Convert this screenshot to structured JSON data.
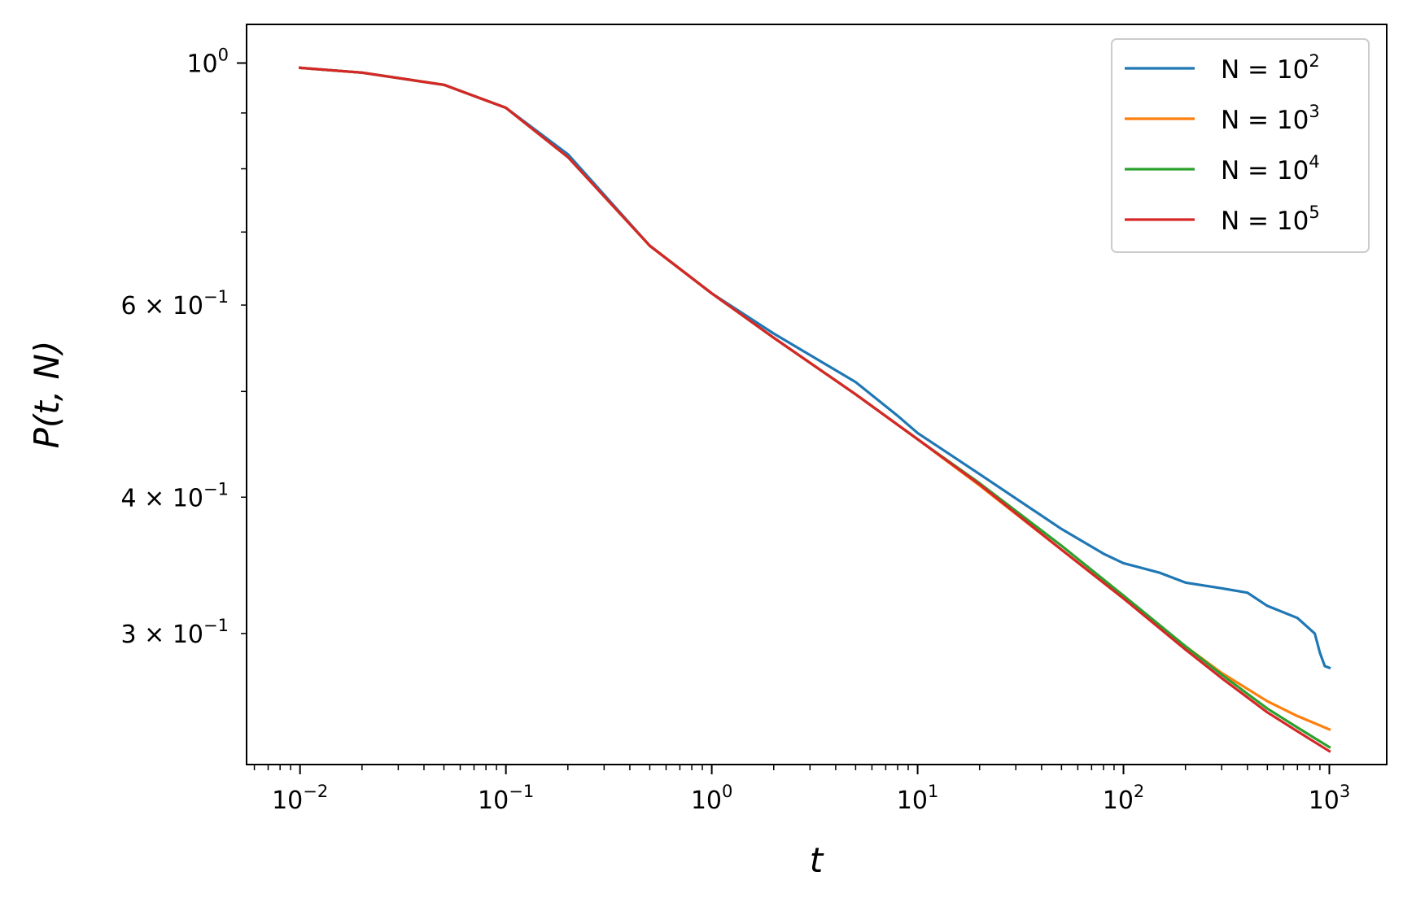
{
  "chart_data": {
    "type": "line",
    "title": "",
    "xlabel": "t",
    "ylabel": "P(t, N)",
    "xscale": "log",
    "yscale": "log",
    "xlim": [
      0.0055,
      1900
    ],
    "ylim": [
      0.2275,
      1.085
    ],
    "grid": false,
    "legend_position": "top-right",
    "x_ticks": [
      {
        "value": 0.01,
        "base": "10",
        "exp": "−2"
      },
      {
        "value": 0.1,
        "base": "10",
        "exp": "−1"
      },
      {
        "value": 1,
        "base": "10",
        "exp": "0"
      },
      {
        "value": 10,
        "base": "10",
        "exp": "1"
      },
      {
        "value": 100,
        "base": "10",
        "exp": "2"
      },
      {
        "value": 1000,
        "base": "10",
        "exp": "3"
      }
    ],
    "y_ticks": [
      {
        "value": 1.0,
        "base": "10",
        "exp": "0"
      },
      {
        "value": 0.6,
        "base": "6 × 10",
        "exp": "−1"
      },
      {
        "value": 0.4,
        "base": "4 × 10",
        "exp": "−1"
      },
      {
        "value": 0.3,
        "base": "3 × 10",
        "exp": "−1"
      }
    ],
    "series": [
      {
        "name": "N = 10",
        "name_exp": "2",
        "color": "#1f77b4",
        "x": [
          0.01,
          0.02,
          0.05,
          0.1,
          0.2,
          0.5,
          1,
          2,
          3,
          5,
          8,
          10,
          20,
          50,
          80,
          100,
          150,
          200,
          300,
          400,
          500,
          700,
          850,
          900,
          950,
          1000
        ],
        "y": [
          0.99,
          0.98,
          0.955,
          0.91,
          0.825,
          0.68,
          0.615,
          0.565,
          0.54,
          0.51,
          0.475,
          0.458,
          0.42,
          0.374,
          0.355,
          0.348,
          0.341,
          0.334,
          0.33,
          0.327,
          0.318,
          0.31,
          0.3,
          0.288,
          0.28,
          0.279
        ]
      },
      {
        "name": "N = 10",
        "name_exp": "3",
        "color": "#ff7f0e",
        "x": [
          0.01,
          0.02,
          0.05,
          0.1,
          0.2,
          0.5,
          1,
          2,
          5,
          10,
          20,
          50,
          100,
          200,
          300,
          500,
          700,
          1000
        ],
        "y": [
          0.99,
          0.98,
          0.955,
          0.91,
          0.82,
          0.68,
          0.615,
          0.56,
          0.497,
          0.452,
          0.41,
          0.358,
          0.323,
          0.292,
          0.276,
          0.26,
          0.252,
          0.245
        ]
      },
      {
        "name": "N = 10",
        "name_exp": "4",
        "color": "#2ca02c",
        "x": [
          0.01,
          0.02,
          0.05,
          0.1,
          0.2,
          0.5,
          1,
          2,
          5,
          10,
          20,
          50,
          100,
          200,
          300,
          500,
          700,
          1000
        ],
        "y": [
          0.99,
          0.98,
          0.955,
          0.91,
          0.82,
          0.68,
          0.615,
          0.56,
          0.497,
          0.452,
          0.412,
          0.361,
          0.325,
          0.292,
          0.275,
          0.256,
          0.246,
          0.236
        ]
      },
      {
        "name": "N = 10",
        "name_exp": "5",
        "color": "#d62728",
        "x": [
          0.01,
          0.02,
          0.05,
          0.1,
          0.2,
          0.5,
          1,
          2,
          5,
          10,
          20,
          50,
          100,
          200,
          300,
          500,
          700,
          1000
        ],
        "y": [
          0.99,
          0.98,
          0.955,
          0.91,
          0.82,
          0.68,
          0.615,
          0.56,
          0.497,
          0.452,
          0.411,
          0.358,
          0.323,
          0.29,
          0.273,
          0.254,
          0.244,
          0.234
        ]
      }
    ]
  }
}
